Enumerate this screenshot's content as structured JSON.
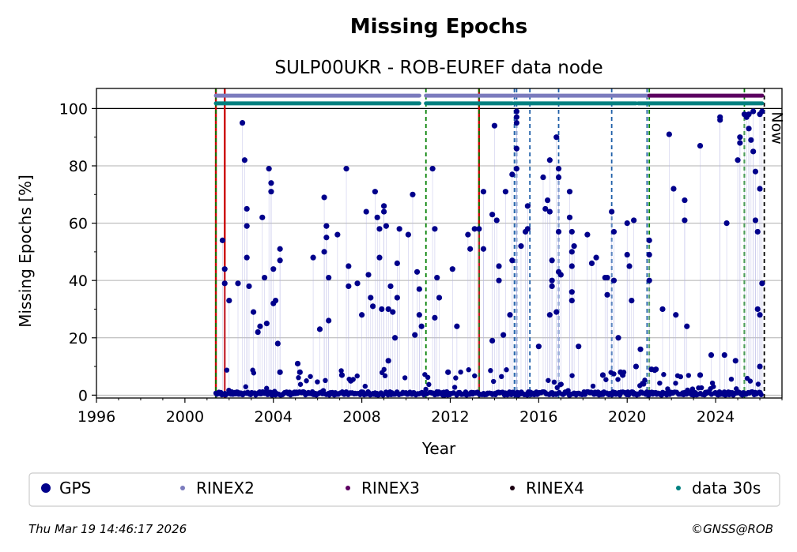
{
  "chart_data": {
    "type": "scatter",
    "title": "Missing Epochs",
    "subtitle": "SULP00UKR - ROB-EUREF data node",
    "xlabel": "Year",
    "ylabel": "Missing Epochs [%]",
    "xlim": [
      1996,
      2027
    ],
    "ylim": [
      -1,
      107
    ],
    "xticks": [
      "1996",
      "2000",
      "2004",
      "2008",
      "2012",
      "2016",
      "2020",
      "2024"
    ],
    "yticks": [
      "0",
      "20",
      "40",
      "60",
      "80",
      "100"
    ],
    "grid": "horizontal",
    "now_label": "Now",
    "now_year": 2026.2,
    "colors": {
      "gps": "#00008b",
      "rinex2": "#7b7bbd",
      "rinex3": "#5c0060",
      "rinex4": "#1a0010",
      "data30s": "#008080",
      "red_line": "#cc0000",
      "green_dash": "#008000",
      "blue_dash": "#1f5fa8",
      "now_line": "#000000"
    },
    "bands": [
      {
        "name": "RINEX2",
        "y": 104.5,
        "segments": [
          [
            2001.4,
            2010.6
          ],
          [
            2010.9,
            2014.8
          ],
          [
            2014.9,
            2020.9
          ]
        ]
      },
      {
        "name": "RINEX3",
        "y": 104.5,
        "segments": [
          [
            2021.0,
            2026.1
          ]
        ]
      },
      {
        "name": "data 30s",
        "y": 101.8,
        "segments": [
          [
            2001.4,
            2010.6
          ],
          [
            2010.9,
            2014.8
          ],
          [
            2014.9,
            2020.4
          ],
          [
            2020.5,
            2026.1
          ]
        ]
      }
    ],
    "vlines": {
      "red": [
        2001.4,
        2001.8,
        2013.3
      ],
      "green_dashed": [
        2001.4,
        2010.9,
        2013.3,
        2021.0,
        2025.3
      ],
      "blue_dashed": [
        2014.9,
        2015.0,
        2015.6,
        2016.9,
        2019.3,
        2020.9
      ]
    },
    "series": [
      {
        "name": "GPS",
        "points": [
          [
            2001.7,
            54
          ],
          [
            2001.8,
            44
          ],
          [
            2001.8,
            39
          ],
          [
            2002.0,
            33
          ],
          [
            2002.4,
            39
          ],
          [
            2002.6,
            95
          ],
          [
            2002.7,
            82
          ],
          [
            2002.8,
            65
          ],
          [
            2002.8,
            59
          ],
          [
            2002.8,
            48
          ],
          [
            2002.9,
            38
          ],
          [
            2003.1,
            29
          ],
          [
            2003.3,
            22
          ],
          [
            2003.4,
            24
          ],
          [
            2003.5,
            62
          ],
          [
            2003.6,
            41
          ],
          [
            2003.7,
            25
          ],
          [
            2003.8,
            79
          ],
          [
            2003.9,
            74
          ],
          [
            2003.9,
            71
          ],
          [
            2004.0,
            32
          ],
          [
            2004.1,
            33
          ],
          [
            2004.2,
            18
          ],
          [
            2004.3,
            51
          ],
          [
            2004.3,
            47
          ],
          [
            2004.3,
            8
          ],
          [
            2004.0,
            44
          ],
          [
            2005.1,
            11
          ],
          [
            2005.2,
            8
          ],
          [
            2005.8,
            48
          ],
          [
            2006.1,
            23
          ],
          [
            2006.3,
            69
          ],
          [
            2006.4,
            59
          ],
          [
            2006.4,
            55
          ],
          [
            2006.3,
            50
          ],
          [
            2006.5,
            26
          ],
          [
            2006.5,
            41
          ],
          [
            2006.9,
            56
          ],
          [
            2007.1,
            7
          ],
          [
            2007.3,
            79
          ],
          [
            2007.4,
            45
          ],
          [
            2007.4,
            38
          ],
          [
            2007.5,
            5
          ],
          [
            2007.8,
            39
          ],
          [
            2008.0,
            28
          ],
          [
            2008.2,
            64
          ],
          [
            2008.3,
            42
          ],
          [
            2008.4,
            34
          ],
          [
            2008.5,
            31
          ],
          [
            2008.6,
            71
          ],
          [
            2008.7,
            62
          ],
          [
            2008.8,
            58
          ],
          [
            2008.8,
            48
          ],
          [
            2008.9,
            30
          ],
          [
            2009.0,
            66
          ],
          [
            2009.0,
            64
          ],
          [
            2009.1,
            59
          ],
          [
            2009.2,
            30
          ],
          [
            2009.3,
            38
          ],
          [
            2009.4,
            29
          ],
          [
            2009.6,
            46
          ],
          [
            2009.6,
            34
          ],
          [
            2009.7,
            58
          ],
          [
            2009.5,
            20
          ],
          [
            2009.2,
            12
          ],
          [
            2010.1,
            56
          ],
          [
            2010.3,
            70
          ],
          [
            2010.5,
            43
          ],
          [
            2010.6,
            37
          ],
          [
            2010.6,
            28
          ],
          [
            2010.7,
            24
          ],
          [
            2010.4,
            21
          ],
          [
            2011.2,
            79
          ],
          [
            2011.3,
            58
          ],
          [
            2011.4,
            41
          ],
          [
            2011.3,
            27
          ],
          [
            2011.5,
            34
          ],
          [
            2011.9,
            8
          ],
          [
            2012.1,
            44
          ],
          [
            2012.3,
            24
          ],
          [
            2012.8,
            56
          ],
          [
            2012.9,
            51
          ],
          [
            2013.1,
            58
          ],
          [
            2013.3,
            58
          ],
          [
            2013.5,
            71
          ],
          [
            2013.5,
            51
          ],
          [
            2013.9,
            63
          ],
          [
            2013.9,
            19
          ],
          [
            2014.0,
            94
          ],
          [
            2014.1,
            61
          ],
          [
            2014.2,
            40
          ],
          [
            2014.2,
            45
          ],
          [
            2014.4,
            21
          ],
          [
            2014.5,
            71
          ],
          [
            2014.7,
            28
          ],
          [
            2014.8,
            77
          ],
          [
            2014.8,
            47
          ],
          [
            2015.0,
            99
          ],
          [
            2015.0,
            97
          ],
          [
            2015.0,
            95
          ],
          [
            2015.0,
            86
          ],
          [
            2015.0,
            79
          ],
          [
            2015.2,
            52
          ],
          [
            2015.4,
            57
          ],
          [
            2015.5,
            58
          ],
          [
            2015.5,
            66
          ],
          [
            2016.0,
            17
          ],
          [
            2016.2,
            76
          ],
          [
            2016.3,
            65
          ],
          [
            2016.4,
            68
          ],
          [
            2016.5,
            82
          ],
          [
            2016.5,
            64
          ],
          [
            2016.6,
            47
          ],
          [
            2016.6,
            40
          ],
          [
            2016.6,
            38
          ],
          [
            2016.5,
            28
          ],
          [
            2016.8,
            29
          ],
          [
            2016.8,
            90
          ],
          [
            2016.9,
            79
          ],
          [
            2016.9,
            76
          ],
          [
            2016.9,
            57
          ],
          [
            2016.9,
            43
          ],
          [
            2017.0,
            42
          ],
          [
            2017.4,
            71
          ],
          [
            2017.4,
            62
          ],
          [
            2017.5,
            57
          ],
          [
            2017.5,
            50
          ],
          [
            2017.5,
            45
          ],
          [
            2017.5,
            36
          ],
          [
            2017.5,
            33
          ],
          [
            2017.6,
            52
          ],
          [
            2017.8,
            17
          ],
          [
            2018.2,
            56
          ],
          [
            2018.4,
            46
          ],
          [
            2018.6,
            48
          ],
          [
            2018.9,
            7
          ],
          [
            2019.0,
            41
          ],
          [
            2019.1,
            35
          ],
          [
            2019.1,
            41
          ],
          [
            2019.3,
            64
          ],
          [
            2019.4,
            57
          ],
          [
            2019.4,
            40
          ],
          [
            2019.6,
            20
          ],
          [
            2019.7,
            8
          ],
          [
            2019.8,
            7
          ],
          [
            2020.0,
            60
          ],
          [
            2020.0,
            49
          ],
          [
            2020.1,
            45
          ],
          [
            2020.2,
            33
          ],
          [
            2020.3,
            61
          ],
          [
            2020.4,
            10
          ],
          [
            2020.6,
            16
          ],
          [
            2020.7,
            4
          ],
          [
            2021.0,
            54
          ],
          [
            2021.0,
            49
          ],
          [
            2021.0,
            40
          ],
          [
            2021.1,
            9
          ],
          [
            2021.3,
            9
          ],
          [
            2021.6,
            30
          ],
          [
            2021.9,
            91
          ],
          [
            2022.1,
            72
          ],
          [
            2022.2,
            28
          ],
          [
            2022.6,
            68
          ],
          [
            2022.6,
            61
          ],
          [
            2022.7,
            24
          ],
          [
            2023.3,
            87
          ],
          [
            2023.3,
            7
          ],
          [
            2023.8,
            14
          ],
          [
            2024.2,
            97
          ],
          [
            2024.2,
            96
          ],
          [
            2024.4,
            14
          ],
          [
            2024.5,
            60
          ],
          [
            2024.9,
            12
          ],
          [
            2025.0,
            82
          ],
          [
            2025.1,
            88
          ],
          [
            2025.1,
            90
          ],
          [
            2025.3,
            98
          ],
          [
            2025.4,
            97
          ],
          [
            2025.5,
            98
          ],
          [
            2025.5,
            93
          ],
          [
            2025.6,
            89
          ],
          [
            2025.7,
            85
          ],
          [
            2025.7,
            99
          ],
          [
            2025.8,
            78
          ],
          [
            2025.8,
            61
          ],
          [
            2025.9,
            57
          ],
          [
            2025.9,
            30
          ],
          [
            2026.0,
            28
          ],
          [
            2026.0,
            72
          ],
          [
            2026.0,
            98
          ],
          [
            2026.1,
            99
          ],
          [
            2026.1,
            39
          ],
          [
            2026.0,
            10
          ]
        ]
      },
      {
        "name": "RINEX2",
        "points": []
      },
      {
        "name": "RINEX3",
        "points": []
      },
      {
        "name": "RINEX4",
        "points": []
      },
      {
        "name": "data 30s",
        "points": []
      }
    ]
  },
  "legend": {
    "items": [
      {
        "label": "GPS",
        "color": "#00008b",
        "size": "large"
      },
      {
        "label": "RINEX2",
        "color": "#7b7bbd",
        "size": "small"
      },
      {
        "label": "RINEX3",
        "color": "#5c0060",
        "size": "small"
      },
      {
        "label": "RINEX4",
        "color": "#1a0010",
        "size": "small"
      },
      {
        "label": "data 30s",
        "color": "#008080",
        "size": "small"
      }
    ]
  },
  "footer": {
    "timestamp": "Thu Mar 19 14:46:17 2026",
    "copyright": "©GNSS@ROB"
  }
}
